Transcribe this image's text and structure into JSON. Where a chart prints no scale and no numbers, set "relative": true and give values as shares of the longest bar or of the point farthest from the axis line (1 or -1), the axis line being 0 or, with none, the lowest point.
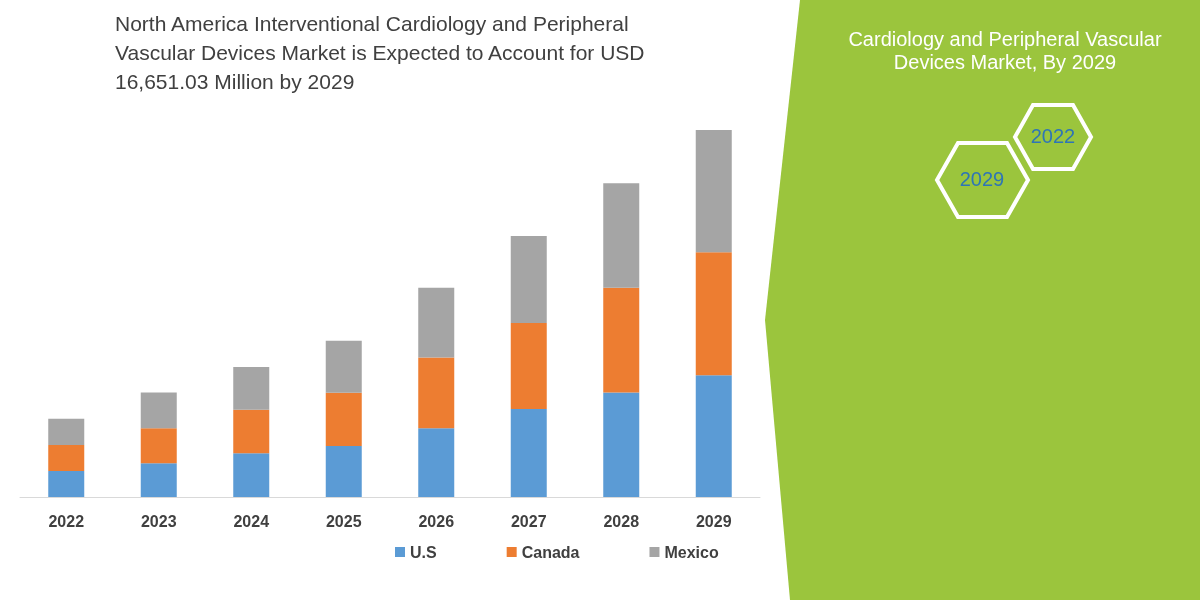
{
  "chart_data": {
    "type": "bar",
    "title": "North America Interventional Cardiology and Peripheral Vascular Devices Market is Expected to Account for USD 16,651.03 Million by 2029",
    "categories": [
      "2022",
      "2023",
      "2024",
      "2025",
      "2026",
      "2027",
      "2028",
      "2029"
    ],
    "stacked": true,
    "relative": true,
    "legend": "bottom",
    "series": [
      {
        "name": "U.S",
        "color": "#5b9bd5",
        "values": [
          0.071,
          0.092,
          0.119,
          0.139,
          0.187,
          0.24,
          0.285,
          0.332
        ]
      },
      {
        "name": "Canada",
        "color": "#ed7d31",
        "values": [
          0.071,
          0.095,
          0.119,
          0.145,
          0.193,
          0.234,
          0.285,
          0.335
        ]
      },
      {
        "name": "Mexico",
        "color": "#a5a5a5",
        "values": [
          0.071,
          0.098,
          0.116,
          0.142,
          0.19,
          0.237,
          0.285,
          0.333
        ]
      }
    ],
    "annotations": [
      "Cardiology and Peripheral Vascular Devices Market, By 2029",
      "2022",
      "2029"
    ]
  }
}
